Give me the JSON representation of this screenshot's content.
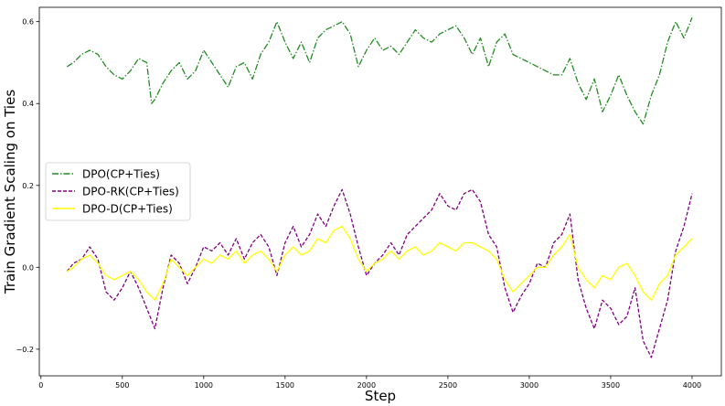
{
  "chart_data": {
    "type": "line",
    "title": "",
    "xlabel": "Step",
    "ylabel": "Train Gradient Scaling on Ties",
    "xlim": [
      -10,
      4180
    ],
    "ylim": [
      -0.265,
      0.635
    ],
    "xticks": [
      0,
      500,
      1000,
      1500,
      2000,
      2500,
      3000,
      3500,
      4000
    ],
    "yticks": [
      -0.2,
      0.0,
      0.2,
      0.4,
      0.6
    ],
    "ytick_labels": [
      "−0.2",
      "0.0",
      "0.2",
      "0.4",
      "0.6"
    ],
    "grid": false,
    "legend_position": "center-left",
    "series": [
      {
        "name": "DPO(CP+Ties)",
        "color": "#228b22",
        "style": "dashdot",
        "x": [
          160,
          200,
          250,
          300,
          350,
          400,
          450,
          500,
          550,
          600,
          650,
          680,
          700,
          750,
          800,
          850,
          900,
          950,
          1000,
          1050,
          1100,
          1150,
          1200,
          1250,
          1300,
          1350,
          1400,
          1450,
          1500,
          1550,
          1600,
          1650,
          1700,
          1750,
          1800,
          1850,
          1900,
          1950,
          2000,
          2050,
          2100,
          2150,
          2200,
          2250,
          2300,
          2350,
          2400,
          2450,
          2500,
          2550,
          2600,
          2650,
          2700,
          2750,
          2800,
          2850,
          2900,
          2950,
          3000,
          3050,
          3100,
          3150,
          3200,
          3250,
          3300,
          3350,
          3400,
          3450,
          3500,
          3550,
          3600,
          3650,
          3700,
          3750,
          3800,
          3850,
          3900,
          3950,
          4000
        ],
        "y": [
          0.49,
          0.5,
          0.52,
          0.53,
          0.52,
          0.49,
          0.47,
          0.46,
          0.48,
          0.51,
          0.5,
          0.4,
          0.41,
          0.45,
          0.48,
          0.5,
          0.46,
          0.48,
          0.53,
          0.5,
          0.47,
          0.44,
          0.49,
          0.5,
          0.46,
          0.52,
          0.55,
          0.6,
          0.55,
          0.51,
          0.55,
          0.5,
          0.56,
          0.58,
          0.59,
          0.6,
          0.57,
          0.49,
          0.53,
          0.56,
          0.53,
          0.54,
          0.52,
          0.55,
          0.58,
          0.56,
          0.55,
          0.57,
          0.58,
          0.59,
          0.56,
          0.52,
          0.56,
          0.49,
          0.55,
          0.57,
          0.52,
          0.51,
          0.5,
          0.49,
          0.48,
          0.47,
          0.47,
          0.51,
          0.45,
          0.41,
          0.46,
          0.38,
          0.42,
          0.47,
          0.42,
          0.38,
          0.35,
          0.42,
          0.47,
          0.55,
          0.6,
          0.56,
          0.61
        ]
      },
      {
        "name": "DPO-RK(CP+Ties)",
        "color": "#800080",
        "style": "dashed",
        "x": [
          160,
          200,
          250,
          300,
          350,
          400,
          450,
          500,
          550,
          600,
          650,
          700,
          750,
          800,
          850,
          900,
          950,
          1000,
          1050,
          1100,
          1150,
          1200,
          1250,
          1300,
          1350,
          1400,
          1450,
          1500,
          1550,
          1600,
          1650,
          1700,
          1750,
          1800,
          1850,
          1900,
          1950,
          2000,
          2050,
          2100,
          2150,
          2200,
          2250,
          2300,
          2350,
          2400,
          2450,
          2500,
          2550,
          2600,
          2650,
          2700,
          2750,
          2800,
          2850,
          2900,
          2950,
          3000,
          3050,
          3100,
          3150,
          3200,
          3250,
          3300,
          3350,
          3400,
          3450,
          3500,
          3550,
          3600,
          3650,
          3700,
          3750,
          3800,
          3850,
          3900,
          3950,
          4000
        ],
        "y": [
          -0.01,
          0.01,
          0.02,
          0.05,
          0.02,
          -0.06,
          -0.08,
          -0.05,
          -0.01,
          -0.05,
          -0.1,
          -0.15,
          -0.05,
          0.03,
          0.01,
          -0.04,
          0.0,
          0.05,
          0.04,
          0.06,
          0.03,
          0.07,
          0.02,
          0.06,
          0.08,
          0.05,
          -0.02,
          0.06,
          0.1,
          0.05,
          0.08,
          0.13,
          0.1,
          0.15,
          0.19,
          0.13,
          0.05,
          -0.02,
          0.01,
          0.03,
          0.06,
          0.03,
          0.08,
          0.1,
          0.12,
          0.14,
          0.18,
          0.15,
          0.14,
          0.18,
          0.19,
          0.16,
          0.08,
          0.05,
          -0.05,
          -0.11,
          -0.07,
          -0.04,
          0.01,
          0.0,
          0.06,
          0.08,
          0.13,
          -0.03,
          -0.1,
          -0.15,
          -0.08,
          -0.1,
          -0.14,
          -0.12,
          -0.05,
          -0.18,
          -0.22,
          -0.15,
          -0.08,
          0.04,
          0.1,
          0.18
        ]
      },
      {
        "name": "DPO-D(CP+Ties)",
        "color": "#ffff00",
        "style": "solid",
        "x": [
          160,
          200,
          250,
          300,
          350,
          400,
          450,
          500,
          550,
          600,
          650,
          700,
          750,
          800,
          850,
          900,
          950,
          1000,
          1050,
          1100,
          1150,
          1200,
          1250,
          1300,
          1350,
          1400,
          1450,
          1500,
          1550,
          1600,
          1650,
          1700,
          1750,
          1800,
          1850,
          1900,
          1950,
          2000,
          2050,
          2100,
          2150,
          2200,
          2250,
          2300,
          2350,
          2400,
          2450,
          2500,
          2550,
          2600,
          2650,
          2700,
          2750,
          2800,
          2850,
          2900,
          2950,
          3000,
          3050,
          3100,
          3150,
          3200,
          3250,
          3300,
          3350,
          3400,
          3450,
          3500,
          3550,
          3600,
          3650,
          3700,
          3750,
          3800,
          3850,
          3900,
          3950,
          4000
        ],
        "y": [
          -0.01,
          0.0,
          0.02,
          0.03,
          0.01,
          -0.02,
          -0.03,
          -0.02,
          -0.01,
          -0.03,
          -0.06,
          -0.08,
          -0.04,
          0.02,
          0.0,
          -0.02,
          0.0,
          0.02,
          0.01,
          0.03,
          0.02,
          0.04,
          0.01,
          0.03,
          0.04,
          0.02,
          -0.01,
          0.03,
          0.05,
          0.03,
          0.04,
          0.07,
          0.06,
          0.09,
          0.1,
          0.07,
          0.02,
          -0.01,
          0.01,
          0.02,
          0.04,
          0.02,
          0.04,
          0.05,
          0.03,
          0.04,
          0.06,
          0.05,
          0.04,
          0.06,
          0.06,
          0.05,
          0.04,
          0.02,
          -0.03,
          -0.06,
          -0.04,
          -0.02,
          0.0,
          0.0,
          0.03,
          0.05,
          0.08,
          0.0,
          -0.03,
          -0.05,
          -0.02,
          -0.03,
          0.0,
          0.01,
          -0.02,
          -0.06,
          -0.08,
          -0.04,
          -0.02,
          0.03,
          0.05,
          0.07
        ]
      }
    ]
  }
}
